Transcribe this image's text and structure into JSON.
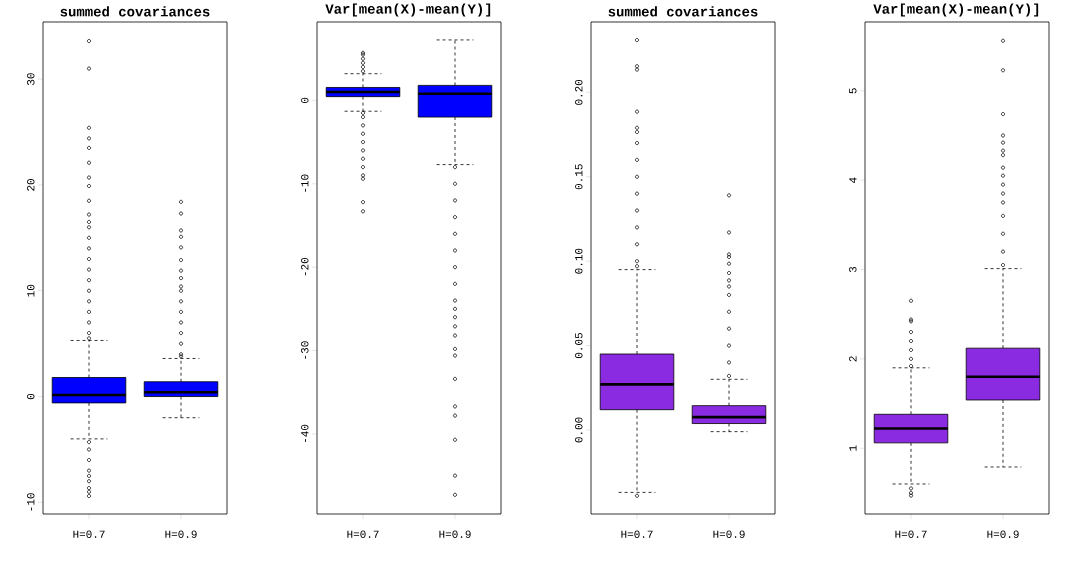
{
  "chart_data": [
    {
      "type": "box",
      "title": "summed covariances",
      "categories": [
        "H=0.7",
        "H=0.9"
      ],
      "color": "#0000ff",
      "ylim": [
        -11.1,
        35.4
      ],
      "yticks": [
        -10,
        0,
        10,
        20,
        30
      ],
      "boxes": [
        {
          "low": -4.0,
          "q1": -0.6,
          "median": 0.15,
          "q3": 1.8,
          "high": 5.3,
          "outliers": [
            33.6,
            31.0,
            25.4,
            24.4,
            23.5,
            22.1,
            20.7,
            19.9,
            18.5,
            17.2,
            16.5,
            16,
            15,
            14,
            13,
            12,
            11,
            10,
            9,
            8,
            7,
            6,
            5.5,
            -4.3,
            -5,
            -6,
            -7,
            -7.5,
            -8,
            -8.65,
            -9.0,
            -9.4
          ]
        },
        {
          "low": -2.0,
          "q1": 0.0,
          "median": 0.4,
          "q3": 1.4,
          "high": 3.6,
          "outliers": [
            18.4,
            17.3,
            15.7,
            15.1,
            14.1,
            12.9,
            11.9,
            11.2,
            10.4,
            10,
            9,
            8,
            7,
            6,
            5,
            4,
            3.8
          ]
        }
      ]
    },
    {
      "type": "box",
      "title": "Var[mean(X)-mean(Y)]",
      "categories": [
        "H=0.7",
        "H=0.9"
      ],
      "color": "#0000ff",
      "ylim": [
        -49.6,
        9.4
      ],
      "yticks": [
        -40,
        -30,
        -20,
        -10,
        0
      ],
      "boxes": [
        {
          "low": -1.3,
          "q1": 0.45,
          "median": 1.0,
          "q3": 1.55,
          "high": 3.2,
          "outliers": [
            5.7,
            5.5,
            5,
            4.5,
            4,
            3.5,
            -1.5,
            -2,
            -3,
            -4,
            -5,
            -6,
            -7,
            -8,
            -9,
            -9.4,
            -12.2,
            -13.3
          ]
        },
        {
          "low": -7.7,
          "q1": -2.0,
          "median": 0.8,
          "q3": 1.8,
          "high": 7.25,
          "outliers": [
            -8,
            -10,
            -12,
            -14,
            -16,
            -18,
            -20,
            -22,
            -24,
            -25,
            -26,
            -27.1,
            -28.2,
            -29.8,
            -30.6,
            -33.4,
            -36.7,
            -37.8,
            -40.7,
            -45.0,
            -47.3
          ]
        }
      ]
    },
    {
      "type": "box",
      "title": "summed covariances",
      "categories": [
        "H=0.7",
        "H=0.9"
      ],
      "color": "#8a2be2",
      "ylim": [
        -0.0498,
        0.2417
      ],
      "yticks": [
        {
          "value": 0,
          "label": "0.00"
        },
        {
          "value": 0.05,
          "label": "0.05"
        },
        {
          "value": 0.1,
          "label": "0.10"
        },
        {
          "value": 0.15,
          "label": "0.15"
        },
        {
          "value": 0.2,
          "label": "0.20"
        }
      ],
      "boxes": [
        {
          "low": -0.037,
          "q1": 0.012,
          "median": 0.027,
          "q3": 0.045,
          "high": 0.095,
          "outliers": [
            0.231,
            0.2155,
            0.2135,
            0.1886,
            0.179,
            0.1765,
            0.17,
            0.16,
            0.15,
            0.14,
            0.13,
            0.12,
            0.11,
            0.1,
            0.097,
            -0.039
          ]
        },
        {
          "low": -0.001,
          "q1": 0.0038,
          "median": 0.0076,
          "q3": 0.0144,
          "high": 0.03,
          "outliers": [
            0.139,
            0.117,
            0.104,
            0.1025,
            0.0985,
            0.093,
            0.0886,
            0.085,
            0.08,
            0.07,
            0.06,
            0.05,
            0.04,
            0.032
          ]
        }
      ]
    },
    {
      "type": "box",
      "title": "Var[mean(X)-mean(Y)]",
      "categories": [
        "H=0.7",
        "H=0.9"
      ],
      "color": "#8a2be2",
      "ylim": [
        0.264,
        5.77
      ],
      "yticks": [
        1,
        2,
        3,
        4,
        5
      ],
      "boxes": [
        {
          "low": 0.6,
          "q1": 1.06,
          "median": 1.22,
          "q3": 1.38,
          "high": 1.9,
          "outliers": [
            2.65,
            2.44,
            2.42,
            2.3,
            2.2,
            2.1,
            2.0,
            1.92,
            0.55,
            0.5,
            0.47
          ]
        },
        {
          "low": 0.79,
          "q1": 1.54,
          "median": 1.8,
          "q3": 2.12,
          "high": 3.01,
          "outliers": [
            5.56,
            5.23,
            4.74,
            4.5,
            4.42,
            4.33,
            4.28,
            4.14,
            4.05,
            3.95,
            3.85,
            3.75,
            3.6,
            3.4,
            3.2,
            3.05
          ]
        }
      ]
    }
  ]
}
